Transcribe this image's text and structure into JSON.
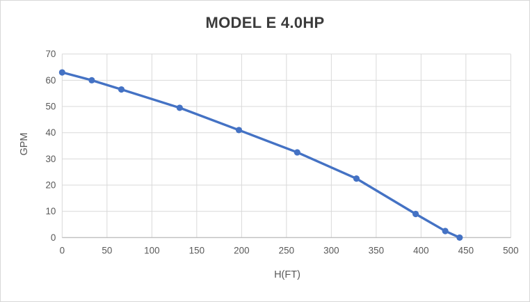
{
  "chart_data": {
    "type": "line",
    "title": "MODEL E 4.0HP",
    "xlabel": "H(FT)",
    "ylabel": "GPM",
    "x": [
      0,
      33,
      66,
      131,
      197,
      262,
      328,
      394,
      427,
      443
    ],
    "y": [
      63,
      60,
      56.5,
      49.5,
      41,
      32.5,
      22.5,
      9,
      2.5,
      0
    ],
    "xlim": [
      0,
      500
    ],
    "ylim": [
      0,
      70
    ],
    "xticks": [
      0,
      50,
      100,
      150,
      200,
      250,
      300,
      350,
      400,
      450,
      500
    ],
    "yticks": [
      0,
      10,
      20,
      30,
      40,
      50,
      60,
      70
    ],
    "grid": true,
    "legend": "none",
    "marker": "circle",
    "colors": {
      "line": "#4472C4",
      "marker": "#4472C4",
      "gridline": "#D9D9D9",
      "axis_line": "#BFBFBF",
      "tick_label": "#595959",
      "axis_title": "#595959",
      "title": "#3B3B3B",
      "background": "#FFFFFF",
      "border": "#D7D7D7"
    }
  }
}
